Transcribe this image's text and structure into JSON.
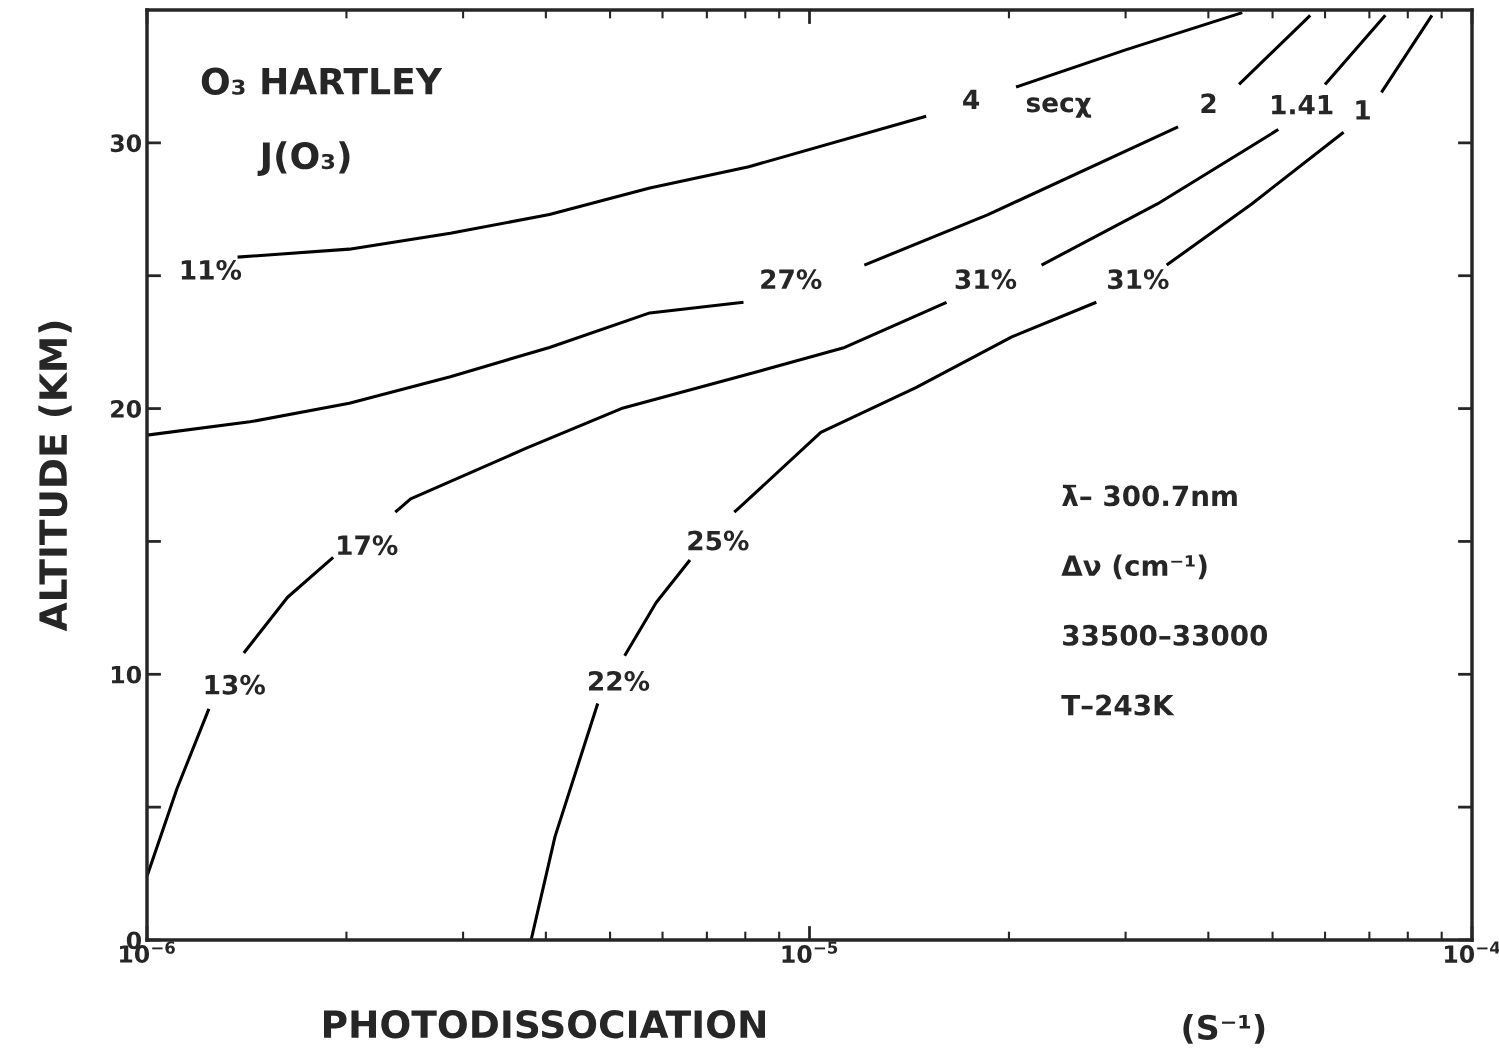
{
  "chart_data": {
    "type": "line",
    "title": "O₃ HARTLEY",
    "subtitle": "J(O₃)",
    "xlabel": "PHOTODISSOCIATION",
    "ylabel": "ALTITUDE (KM)",
    "log": "x",
    "xlim": [
      1e-06,
      0.0001
    ],
    "xticks": [
      {
        "value": 1e-06,
        "label": "10$^{−6}$"
      },
      {
        "value": 1e-05,
        "label": "10$^{−5}$"
      },
      {
        "value": 0.0001,
        "label": "10$^{−4}$"
      }
    ],
    "ylim": [
      0,
      35
    ],
    "yticks": [
      0,
      {
        "value": 5,
        "label": null
      },
      10,
      {
        "value": 15,
        "label": null
      },
      20,
      {
        "value": 25,
        "label": null
      },
      30
    ],
    "grid": false,
    "legend": false,
    "marker": "none",
    "line_style": "solid",
    "series": [
      {
        "name": "4",
        "color": "#000000",
        "x": [
          1.37e-06,
          2.02e-06,
          2.87e-06,
          4.05e-06,
          5.74e-06,
          8.1e-06,
          1.5e-05,
          1.75e-05,
          2.05e-05,
          3e-05,
          4.5e-05
        ],
        "values": [
          25.7,
          26.0,
          26.6,
          27.3,
          28.3,
          29.1,
          31.0,
          null,
          32.1,
          33.5,
          34.9
        ]
      },
      {
        "name": "2",
        "color": "#000000",
        "x": [
          1e-06,
          1.43e-06,
          2.02e-06,
          2.87e-06,
          4.05e-06,
          5.74e-06,
          7.95e-06,
          1e-05,
          1.21e-05,
          1.86e-05,
          3.6e-05,
          4e-05,
          4.45e-05,
          5.7e-05
        ],
        "values": [
          19.0,
          19.5,
          20.2,
          21.2,
          22.3,
          23.6,
          24.0,
          null,
          25.4,
          27.3,
          30.6,
          null,
          32.2,
          34.8
        ]
      },
      {
        "name": "1.41",
        "color": "#000000",
        "x": [
          1e-06,
          1.11e-06,
          1.24e-06,
          1.3e-06,
          1.4e-06,
          1.63e-06,
          1.91e-06,
          2.1e-06,
          2.37e-06,
          2.5e-06,
          3.73e-06,
          5.2e-06,
          8.1e-06,
          1.13e-05,
          1.61e-05,
          1.9e-05,
          2.24e-05,
          3.35e-05,
          5.1e-05,
          5.5e-05,
          6e-05,
          7.4e-05
        ],
        "values": [
          2.4,
          5.7,
          8.7,
          null,
          10.8,
          12.9,
          14.4,
          null,
          16.1,
          16.6,
          18.5,
          20.0,
          21.3,
          22.3,
          24.0,
          null,
          25.4,
          27.7,
          30.5,
          null,
          32.2,
          34.8
        ]
      },
      {
        "name": "1",
        "color": "#000000",
        "x": [
          3.8e-06,
          4.13e-06,
          4.79e-06,
          5e-06,
          5.26e-06,
          5.87e-06,
          6.6e-06,
          7.1e-06,
          7.7e-06,
          8.1e-06,
          1.04e-05,
          1.45e-05,
          2.02e-05,
          2.71e-05,
          3e-05,
          3.46e-05,
          4.65e-05,
          6.4e-05,
          6.8e-05,
          7.3e-05,
          8.7e-05
        ],
        "values": [
          0,
          3.9,
          8.9,
          null,
          10.7,
          12.7,
          14.3,
          null,
          16.1,
          16.6,
          19.1,
          20.8,
          22.7,
          24.0,
          null,
          25.4,
          27.7,
          30.4,
          null,
          31.9,
          34.8
        ]
      }
    ],
    "annotations": [
      "11%",
      "27%",
      "31%",
      "31%",
      "17%",
      "25%",
      "13%",
      "22%",
      "secχ",
      "λ̄– 300.7nm",
      "Δν (cm⁻¹)",
      "33500–33000",
      "T–243K",
      "(S⁻¹)"
    ]
  }
}
